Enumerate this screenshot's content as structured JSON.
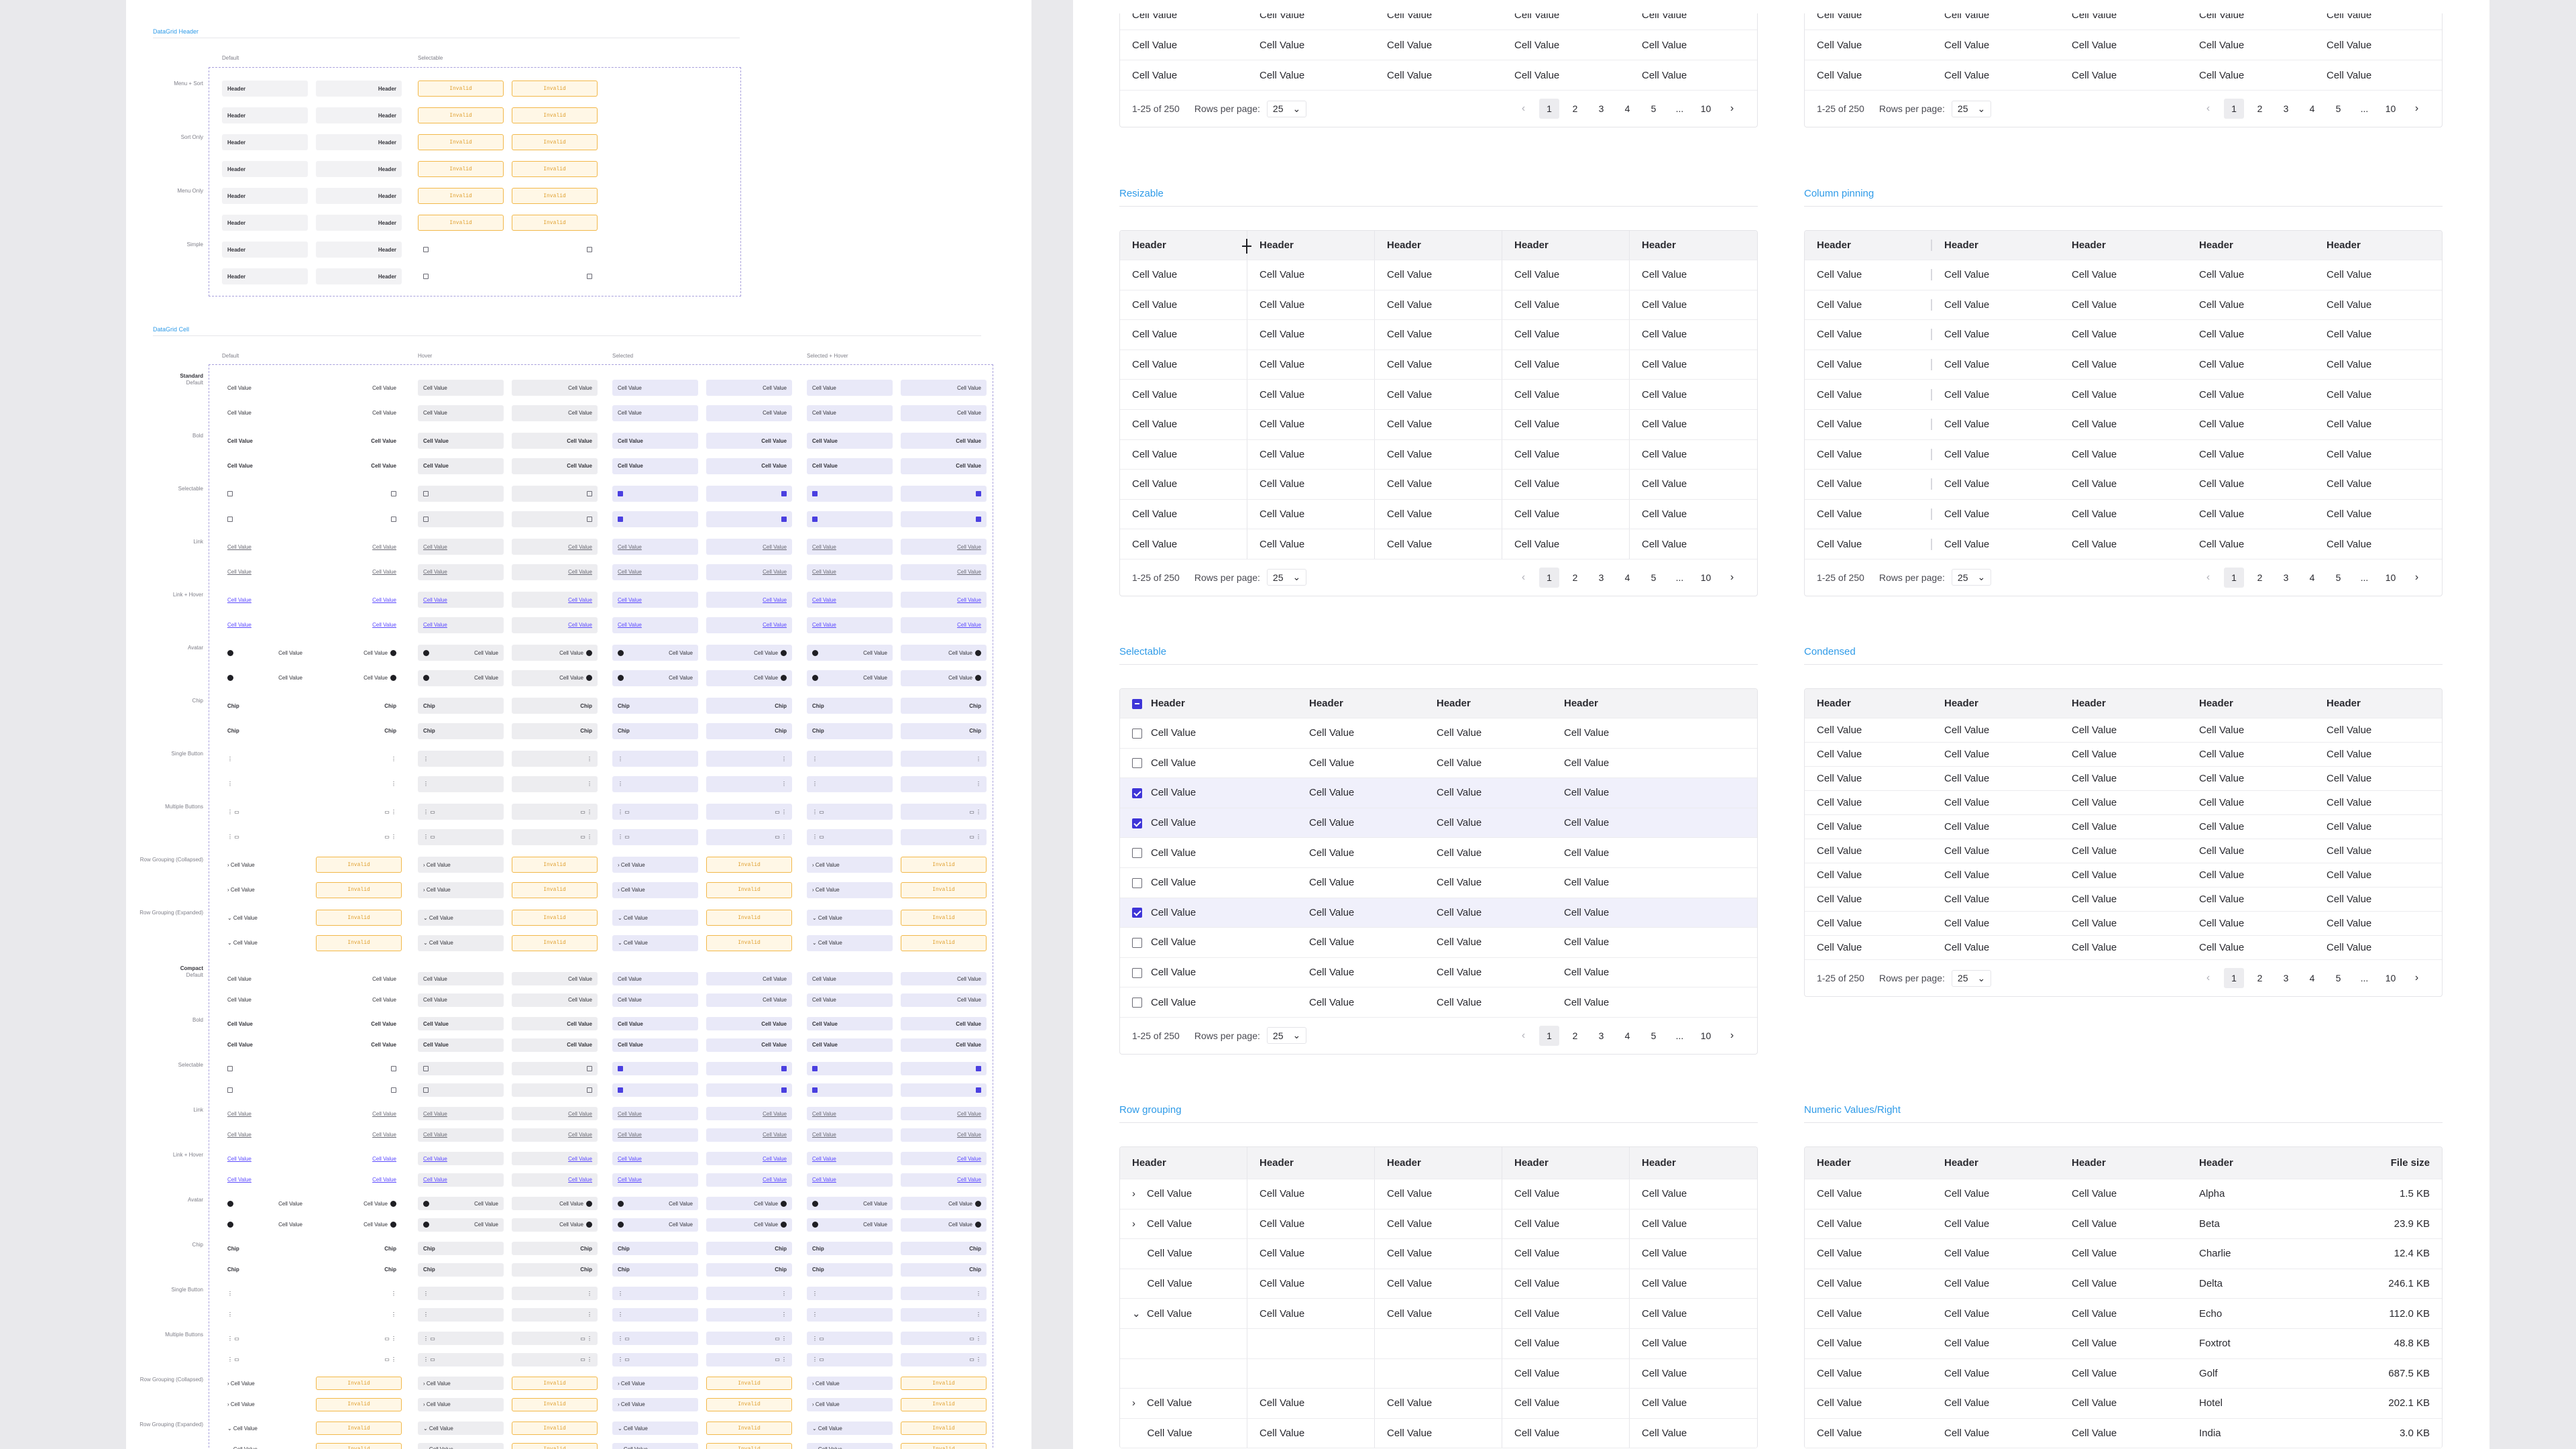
{
  "colors": {
    "accent": "#2f9be8",
    "selected": "#3e34d8",
    "invalid": "#f2b84a",
    "link": "#5b49ff"
  },
  "spec": {
    "header_section_title": "DataGrid Header",
    "header_columns": [
      "Default",
      "Selectable"
    ],
    "header_rows": [
      "Menu + Sort",
      "Sort Only",
      "Menu Only",
      "Simple"
    ],
    "header_cell": "Header",
    "invalid": "Invalid",
    "cell_section_title": "DataGrid Cell",
    "cell_columns": [
      "Default",
      "Hover",
      "Selected",
      "Selected + Hover"
    ],
    "group_standard": "Standard",
    "group_compact": "Compact",
    "standard_rows": [
      "Default",
      "Bold",
      "Selectable",
      "Link",
      "Link + Hover",
      "Avatar",
      "Chip",
      "Single Button",
      "Multiple Buttons",
      "Row Grouping (Collapsed)",
      "Row Grouping (Expanded)"
    ],
    "compact_rows": [
      "Default",
      "Bold",
      "Selectable",
      "Link",
      "Link + Hover",
      "Avatar",
      "Chip",
      "Single Button",
      "Multiple Buttons",
      "Row Grouping (Collapsed)",
      "Row Grouping (Expanded)"
    ],
    "cell_value": "Cell Value",
    "chip": "Chip"
  },
  "doc": {
    "cell_value": "Cell Value",
    "header": "Header",
    "footer": {
      "range": "1-25 of 250",
      "rows_label": "Rows per page:",
      "rows_value": "25",
      "pages": [
        "1",
        "2",
        "3",
        "4",
        "5",
        "...",
        "10"
      ],
      "current_page": "1"
    },
    "examples": {
      "resizable": "Resizable",
      "pinning": "Column pinning",
      "selectable": "Selectable",
      "condensed": "Condensed",
      "grouping": "Row grouping",
      "numeric": "Numeric Values/Right"
    },
    "selectable_checked": [
      false,
      false,
      true,
      true,
      false,
      false,
      true,
      false,
      false,
      false
    ],
    "numeric": {
      "last_headers": [
        "Header",
        "File size"
      ],
      "names": [
        "Alpha",
        "Beta",
        "Charlie",
        "Delta",
        "Echo",
        "Foxtrot",
        "Golf",
        "Hotel",
        "India"
      ],
      "sizes": [
        "1.5 KB",
        "23.9 KB",
        "12.4 KB",
        "246.1 KB",
        "112.0 KB",
        "48.8 KB",
        "687.5 KB",
        "202.1 KB",
        "3.0 KB"
      ]
    }
  }
}
